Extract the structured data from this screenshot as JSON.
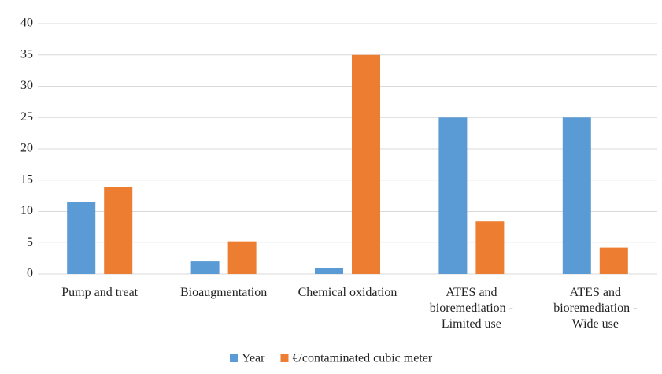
{
  "chart_data": {
    "type": "bar",
    "categories": [
      "Pump and treat",
      "Bioaugmentation",
      "Chemical oxidation",
      "ATES and bioremediation - Limited use",
      "ATES and bioremediation - Wide use"
    ],
    "series": [
      {
        "name": "Year",
        "color": "#5b9bd5",
        "values": [
          11.5,
          2,
          1,
          25,
          25
        ]
      },
      {
        "name": "€/contaminated cubic meter",
        "color": "#ed7d31",
        "values": [
          13.9,
          5.2,
          35,
          8.4,
          4.2
        ]
      }
    ],
    "ylim": [
      0,
      40
    ],
    "yticks": [
      0,
      5,
      10,
      15,
      20,
      25,
      30,
      35,
      40
    ],
    "grid": true,
    "legend": "bottom"
  }
}
